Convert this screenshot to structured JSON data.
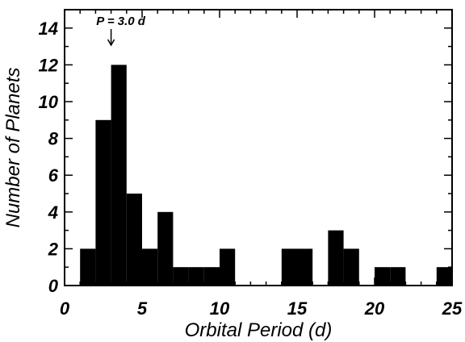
{
  "chart_data": {
    "type": "bar",
    "subtype": "histogram",
    "xlabel": "Orbital Period (d)",
    "ylabel": "Number of Planets",
    "xlim": [
      0,
      25
    ],
    "ylim": [
      0,
      15
    ],
    "x_ticks": [
      0,
      5,
      10,
      15,
      20,
      25
    ],
    "y_ticks": [
      0,
      2,
      4,
      6,
      8,
      10,
      12,
      14
    ],
    "bin_width": 1,
    "bins": [
      {
        "start": 1,
        "end": 2,
        "count": 2
      },
      {
        "start": 2,
        "end": 3,
        "count": 9
      },
      {
        "start": 3,
        "end": 4,
        "count": 12
      },
      {
        "start": 4,
        "end": 5,
        "count": 5
      },
      {
        "start": 5,
        "end": 6,
        "count": 2
      },
      {
        "start": 6,
        "end": 7,
        "count": 4
      },
      {
        "start": 7,
        "end": 8,
        "count": 1
      },
      {
        "start": 8,
        "end": 9,
        "count": 1
      },
      {
        "start": 9,
        "end": 10,
        "count": 1
      },
      {
        "start": 10,
        "end": 11,
        "count": 2
      },
      {
        "start": 11,
        "end": 12,
        "count": 0
      },
      {
        "start": 12,
        "end": 13,
        "count": 0
      },
      {
        "start": 13,
        "end": 14,
        "count": 0
      },
      {
        "start": 14,
        "end": 15,
        "count": 2
      },
      {
        "start": 15,
        "end": 16,
        "count": 2
      },
      {
        "start": 16,
        "end": 17,
        "count": 0
      },
      {
        "start": 17,
        "end": 18,
        "count": 3
      },
      {
        "start": 18,
        "end": 19,
        "count": 2
      },
      {
        "start": 19,
        "end": 20,
        "count": 0
      },
      {
        "start": 20,
        "end": 21,
        "count": 1
      },
      {
        "start": 21,
        "end": 22,
        "count": 1
      },
      {
        "start": 22,
        "end": 23,
        "count": 0
      },
      {
        "start": 23,
        "end": 24,
        "count": 0
      },
      {
        "start": 24,
        "end": 25,
        "count": 1
      }
    ],
    "annotations": [
      {
        "text": "P = 3.0 d",
        "x": 3.0,
        "marker": "down-arrow"
      }
    ],
    "bar_color": "#000000",
    "grid": false,
    "legend": "none"
  }
}
